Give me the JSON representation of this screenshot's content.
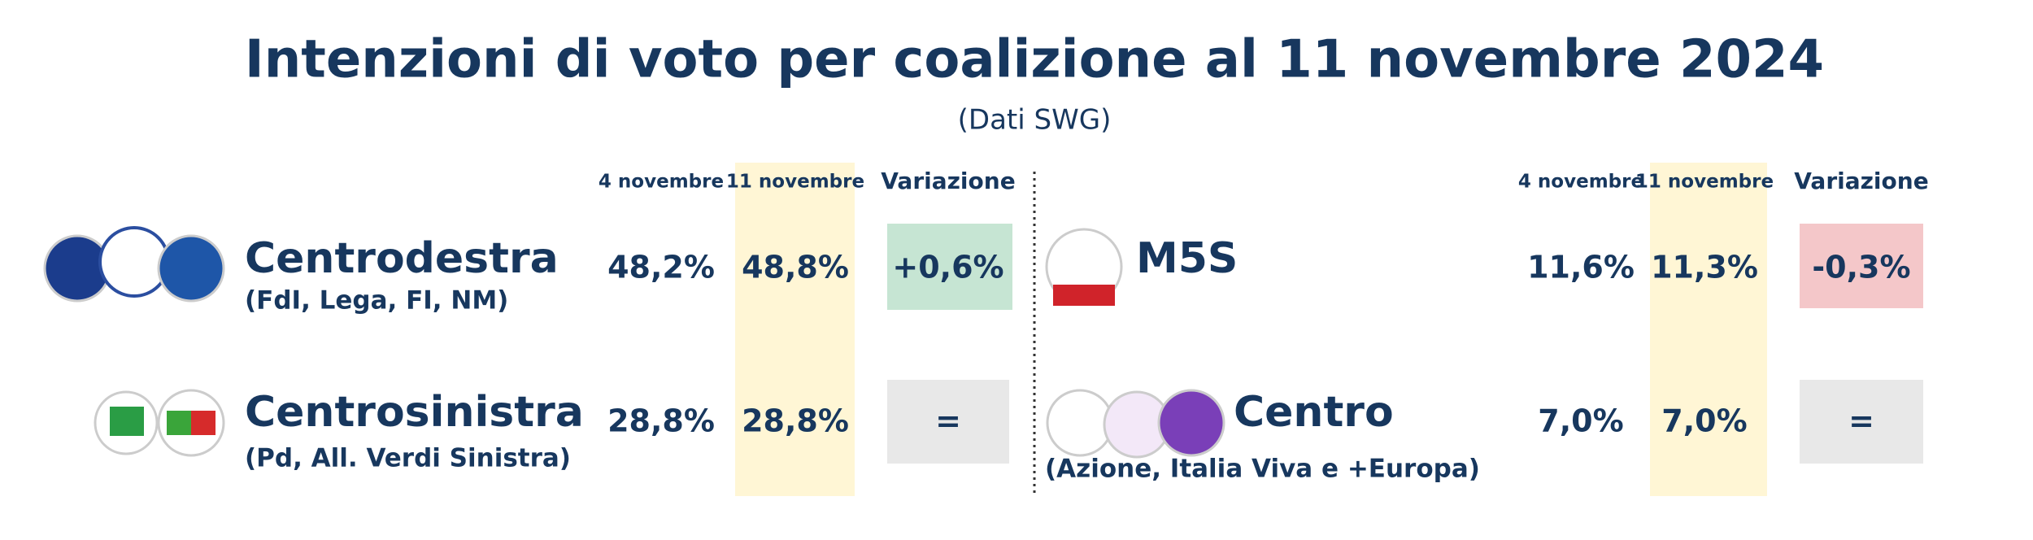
{
  "header": {
    "title": "Intenzioni di voto per coalizione al 11 novembre 2024",
    "subtitle": "(Dati SWG)"
  },
  "left": {
    "columns": [
      "4 novembre",
      "11 novembre",
      "Variazione"
    ],
    "rows": [
      {
        "name": "Centrodestra",
        "detail": "(FdI, Lega, FI, NM)",
        "values": [
          "48,2%",
          "48,8%",
          "+0,6%"
        ]
      },
      {
        "name": "Centrosinistra",
        "detail": "(Pd, All. Verdi Sinistra)",
        "values": [
          "28,8%",
          "28,8%",
          "="
        ]
      }
    ]
  },
  "right": {
    "columns": [
      "4 novembre",
      "11 novembre",
      "Variazione"
    ],
    "rows": [
      {
        "name": "M5S",
        "values": [
          "11,6%",
          "11,3%",
          "-0,3%"
        ]
      },
      {
        "name": "Centro",
        "detail": "(Azione, Italia Viva e +Europa)",
        "values": [
          "7,0%",
          "7,0%",
          "="
        ]
      }
    ]
  }
}
